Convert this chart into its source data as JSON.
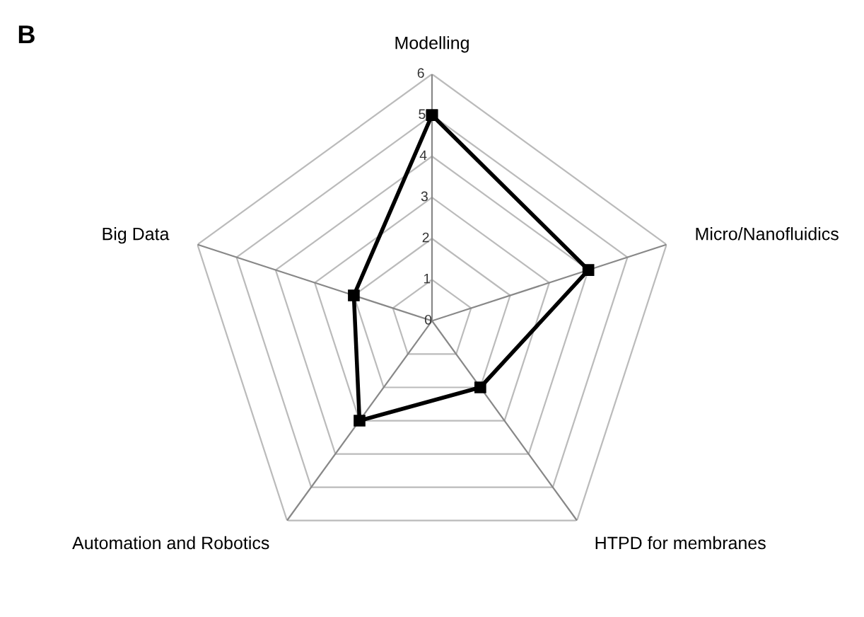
{
  "chart_data": {
    "type": "radar",
    "categories": [
      "Modelling",
      "Micro/Nanofluidics",
      "HTPD for membranes",
      "Automation and Robotics",
      "Big Data"
    ],
    "series": [
      {
        "color": "#000000",
        "values": [
          5,
          4,
          2,
          3,
          2
        ]
      }
    ],
    "ylim": [
      0,
      6
    ],
    "yticks": [
      0,
      1,
      2,
      3,
      4,
      5,
      6
    ],
    "grid": true,
    "marker": "square",
    "line_style": "solid",
    "annotations": [
      "B"
    ]
  }
}
